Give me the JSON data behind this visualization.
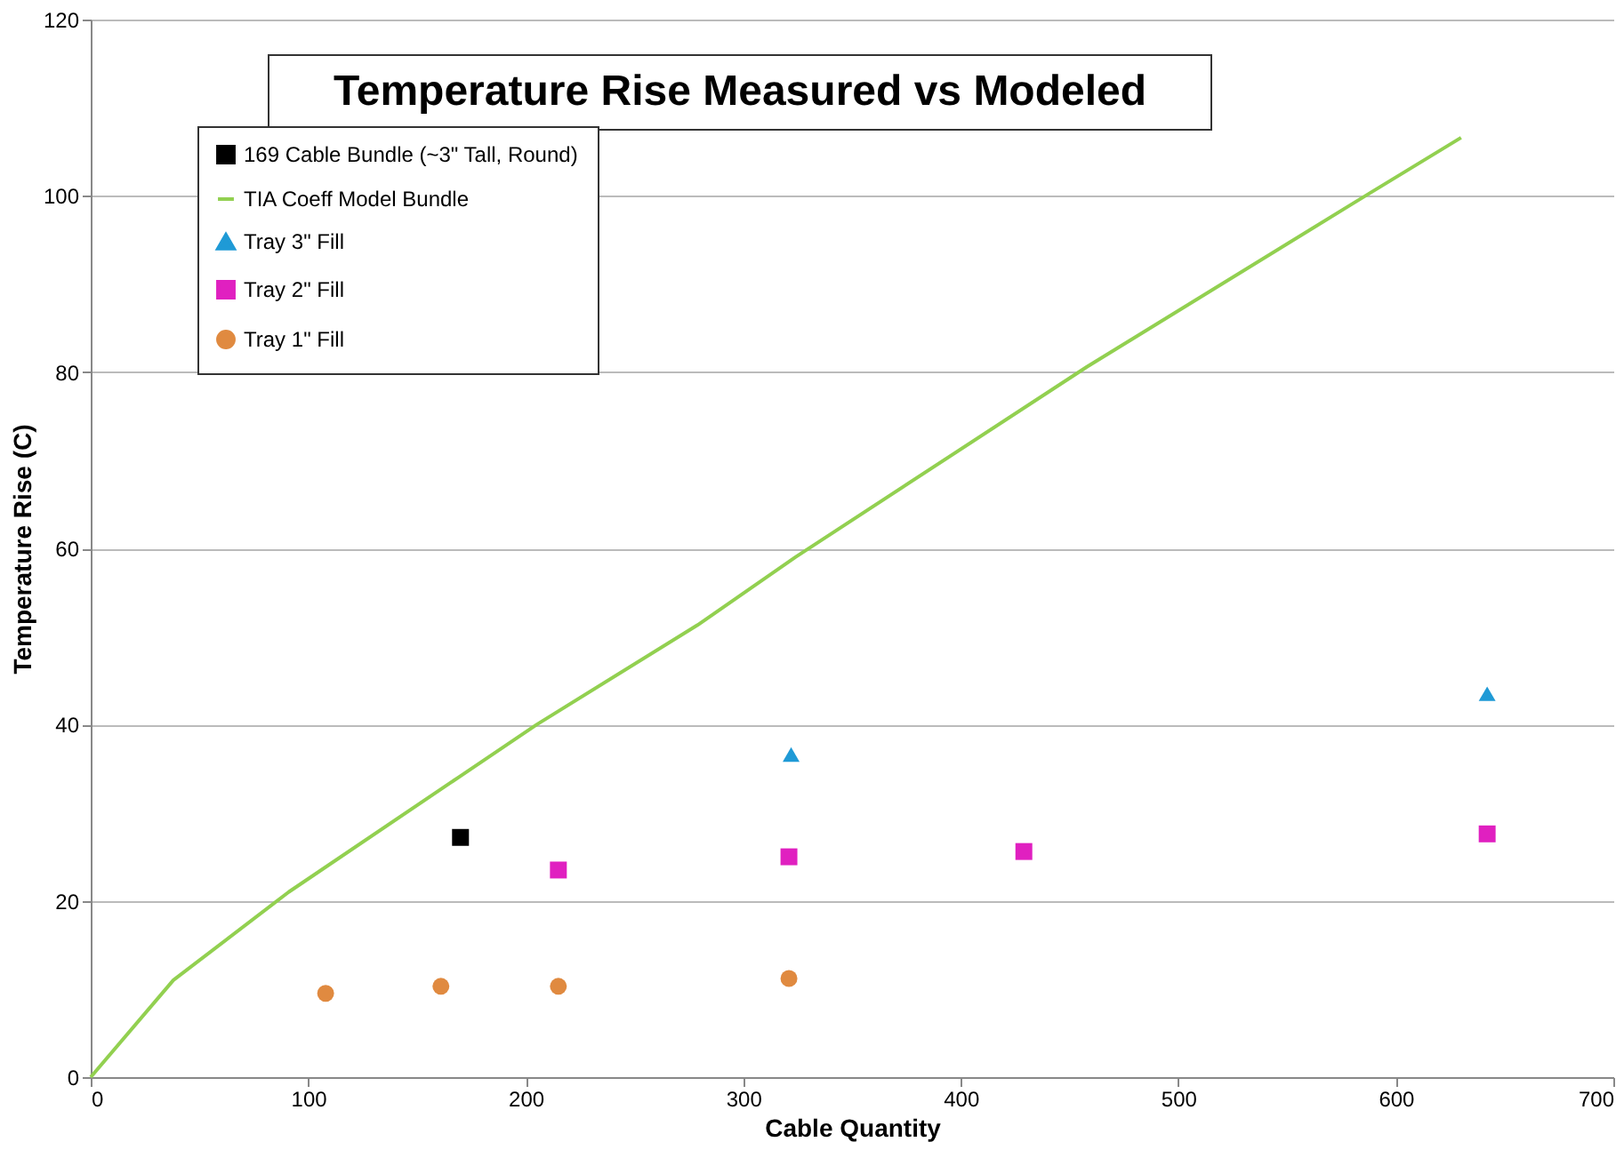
{
  "chart_data": {
    "type": "scatter",
    "title": "Temperature Rise Measured vs Modeled",
    "xlabel": "Cable Quantity",
    "ylabel": "Temperature Rise (C)",
    "xlim": [
      0,
      700
    ],
    "xticks": [
      0,
      100,
      200,
      300,
      400,
      500,
      600,
      700
    ],
    "ylim": [
      0,
      120
    ],
    "yticks": [
      0,
      20,
      40,
      60,
      80,
      100,
      120
    ],
    "grid": "y",
    "legend": "top left",
    "series": [
      {
        "name": "169 Cable Bundle (~3\" Tall, Round)",
        "type": "scatter",
        "marker": "square",
        "color": "#000000",
        "x": [
          170
        ],
        "values": [
          27.2
        ]
      },
      {
        "name": "TIA Coeff Model Bundle",
        "type": "line",
        "marker": "none",
        "color": "#92d050",
        "x": [
          0,
          38,
          91,
          169,
          205,
          279,
          324,
          458,
          588,
          630
        ],
        "values": [
          0,
          11,
          21,
          34,
          40,
          51.3,
          59,
          80.6,
          100.3,
          106.6
        ]
      },
      {
        "name": "Tray 3\" Fill",
        "type": "scatter",
        "marker": "triangle",
        "color": "#1f9ad6",
        "x": [
          322,
          642
        ],
        "values": [
          36.6,
          43.5
        ]
      },
      {
        "name": "Tray 2\" Fill",
        "type": "scatter",
        "marker": "square",
        "color": "#e020c0",
        "x": [
          215,
          321,
          429,
          642
        ],
        "values": [
          23.5,
          25,
          25.6,
          27.6
        ]
      },
      {
        "name": "Tray 1\" Fill",
        "type": "scatter",
        "marker": "circle",
        "color": "#e08a40",
        "x": [
          108,
          161,
          215,
          321
        ],
        "values": [
          9.5,
          10.3,
          10.3,
          11.2
        ]
      }
    ]
  }
}
